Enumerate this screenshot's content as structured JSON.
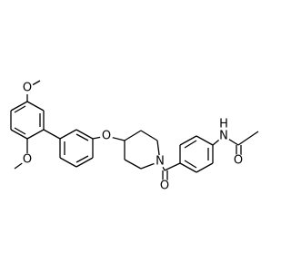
{
  "atoms": [
    {
      "label": "O"
    },
    {
      "label": "O"
    },
    {
      "label": "O"
    },
    {
      "label": "N"
    },
    {
      "label": "O"
    },
    {
      "label": "N"
    },
    {
      "label": "H"
    },
    {
      "label": "O"
    }
  ]
}
